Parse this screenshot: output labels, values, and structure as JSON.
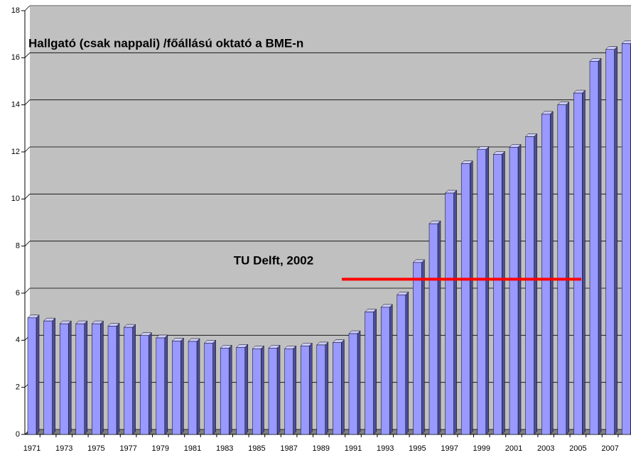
{
  "chart_data": {
    "type": "bar",
    "title": "Hallgató (csak nappali) /főállású oktató a BME-n",
    "categories": [
      "1971",
      null,
      "1973",
      null,
      "1975",
      null,
      "1977",
      null,
      "1979",
      null,
      "1981",
      null,
      "1983",
      null,
      "1985",
      null,
      "1987",
      null,
      "1989",
      null,
      "1991",
      null,
      "1993",
      null,
      "1995",
      null,
      "1997",
      null,
      "1999",
      null,
      "2001",
      null,
      "2003",
      null,
      "2005",
      null,
      "2007",
      null
    ],
    "values": [
      4.95,
      4.82,
      4.7,
      4.7,
      4.7,
      4.6,
      4.55,
      4.2,
      4.1,
      3.97,
      3.95,
      3.88,
      3.67,
      3.7,
      3.64,
      3.67,
      3.64,
      3.76,
      3.8,
      3.9,
      4.28,
      5.2,
      5.4,
      5.93,
      7.3,
      8.95,
      10.25,
      11.5,
      12.1,
      11.9,
      12.2,
      12.65,
      13.6,
      14,
      14.5,
      15.85,
      16.35,
      16.6
    ],
    "color": "#9999ff",
    "ylim": [
      0,
      18
    ],
    "yticks": [
      0,
      2,
      4,
      6,
      8,
      10,
      12,
      14,
      16,
      18
    ],
    "grid": true,
    "annotation": {
      "text": "TU Delft, 2002",
      "value": 6.5,
      "color": "#ff0000"
    }
  }
}
